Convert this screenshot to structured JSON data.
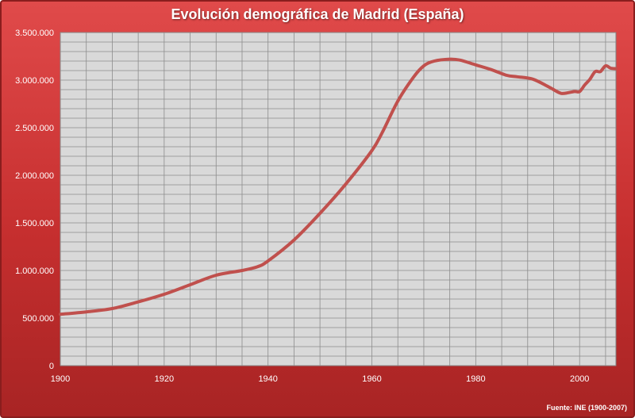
{
  "chart_data": {
    "type": "line",
    "title": "Evolución demográfica de Madrid (España)",
    "xlabel": "",
    "ylabel": "",
    "xlim": [
      1900,
      2007
    ],
    "ylim": [
      0,
      3500000
    ],
    "x_ticks": [
      1900,
      1920,
      1940,
      1960,
      1980,
      2000
    ],
    "x_tick_labels": [
      "1900",
      "1920",
      "1940",
      "1960",
      "1980",
      "2000"
    ],
    "y_ticks": [
      0,
      500000,
      1000000,
      1500000,
      2000000,
      2500000,
      3000000,
      3500000
    ],
    "y_tick_labels": [
      "0",
      "500.000",
      "1.000.000",
      "1.500.000",
      "2.000.000",
      "2.500.000",
      "3.000.000",
      "3.500.000"
    ],
    "grid": true,
    "legend": "none",
    "series": [
      {
        "name": "Madrid",
        "color": "#c0504d",
        "x": [
          1900,
          1905,
          1910,
          1915,
          1920,
          1925,
          1930,
          1935,
          1938,
          1940,
          1945,
          1950,
          1955,
          1960,
          1962,
          1965,
          1968,
          1970,
          1972,
          1975,
          1977,
          1980,
          1983,
          1986,
          1988,
          1991,
          1994,
          1996,
          1997,
          1999,
          2000,
          2001,
          2002,
          2003,
          2004,
          2005,
          2006,
          2007
        ],
        "values": [
          540000,
          565000,
          600000,
          670000,
          750000,
          850000,
          950000,
          1000000,
          1040000,
          1100000,
          1320000,
          1600000,
          1910000,
          2260000,
          2450000,
          2780000,
          3030000,
          3150000,
          3200000,
          3220000,
          3210000,
          3160000,
          3110000,
          3050000,
          3035000,
          3010000,
          2930000,
          2870000,
          2860000,
          2880000,
          2880000,
          2950000,
          3010000,
          3090000,
          3090000,
          3150000,
          3125000,
          3120000
        ]
      }
    ],
    "source": "Fuente: INE (1900-2007)"
  }
}
